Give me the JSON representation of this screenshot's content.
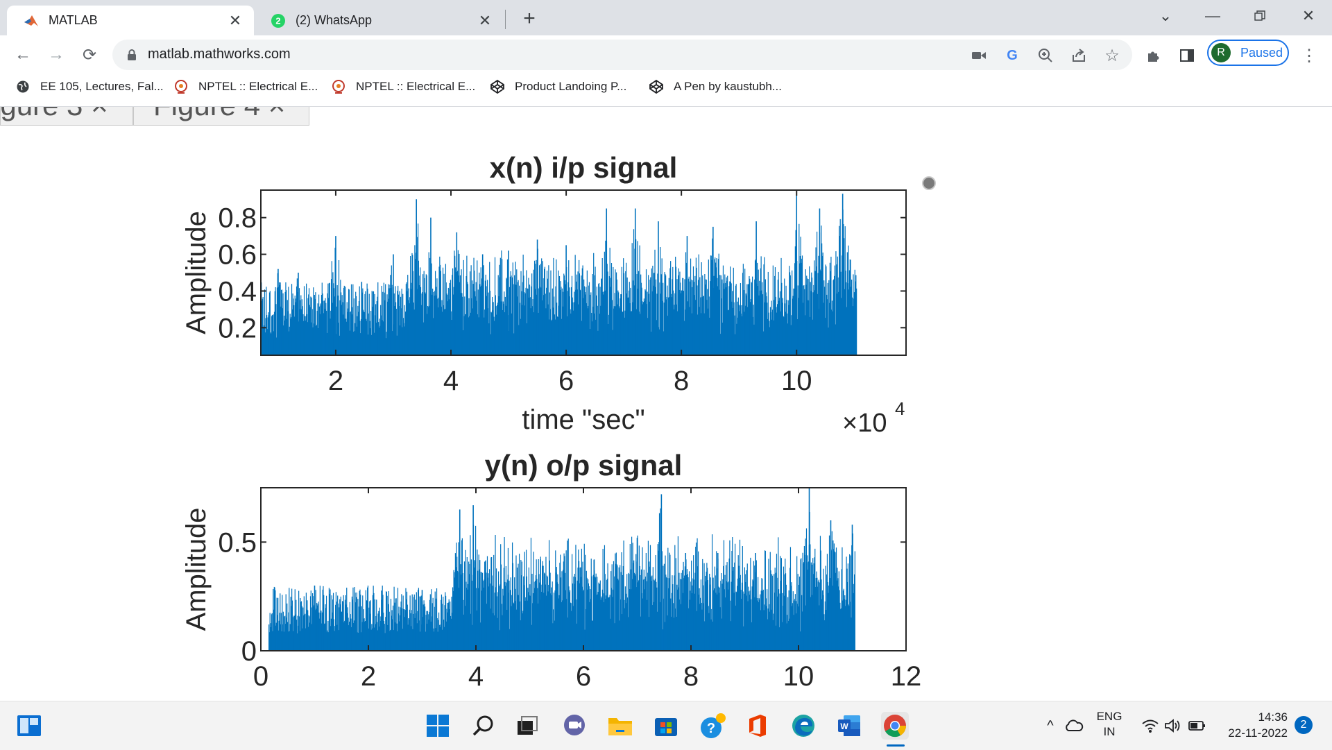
{
  "browser": {
    "tabs": [
      {
        "title": "MATLAB",
        "active": true,
        "icon": "matlab-icon"
      },
      {
        "title": "(2) WhatsApp",
        "active": false,
        "icon": "whatsapp-icon",
        "badge": "2"
      }
    ],
    "url": "matlab.mathworks.com",
    "profile": {
      "initial": "R",
      "status": "Paused"
    },
    "bookmarks": [
      {
        "label": "EE 105, Lectures, Fal...",
        "icon": "globe-icon"
      },
      {
        "label": "NPTEL :: Electrical E...",
        "icon": "nptel-icon"
      },
      {
        "label": "NPTEL :: Electrical E...",
        "icon": "nptel-icon"
      },
      {
        "label": "Product Landoing P...",
        "icon": "codepen-icon"
      },
      {
        "label": "A Pen by kaustubh...",
        "icon": "codepen-icon"
      }
    ]
  },
  "colors": {
    "series": "#0072bd",
    "accent": "#1a73e8"
  },
  "chart_data": [
    {
      "type": "bar",
      "title": "x(n) i/p signal",
      "xlabel": "time \"sec\"",
      "ylabel": "Amplitude",
      "x_exponent_label": "×10",
      "x_exponent_power": "4",
      "xlim": [
        0.7,
        11.9
      ],
      "ylim": [
        0.05,
        0.95
      ],
      "xticks": [
        "2",
        "4",
        "6",
        "8",
        "10"
      ],
      "yticks": [
        "0.2",
        "0.4",
        "0.6",
        "0.8"
      ],
      "data_range_x": [
        0.7,
        11.05
      ],
      "peaks": [
        {
          "x": 1.0,
          "y": 0.52
        },
        {
          "x": 1.35,
          "y": 0.5
        },
        {
          "x": 2.0,
          "y": 0.7
        },
        {
          "x": 2.45,
          "y": 0.45
        },
        {
          "x": 3.0,
          "y": 0.6
        },
        {
          "x": 3.4,
          "y": 0.9
        },
        {
          "x": 3.65,
          "y": 0.8
        },
        {
          "x": 4.1,
          "y": 0.72
        },
        {
          "x": 4.55,
          "y": 0.6
        },
        {
          "x": 5.0,
          "y": 0.62
        },
        {
          "x": 5.5,
          "y": 0.68
        },
        {
          "x": 6.0,
          "y": 0.65
        },
        {
          "x": 6.7,
          "y": 0.85
        },
        {
          "x": 7.2,
          "y": 0.85
        },
        {
          "x": 7.6,
          "y": 0.78
        },
        {
          "x": 8.1,
          "y": 0.7
        },
        {
          "x": 8.55,
          "y": 0.75
        },
        {
          "x": 9.3,
          "y": 0.78
        },
        {
          "x": 10.0,
          "y": 0.92
        },
        {
          "x": 10.4,
          "y": 0.85
        },
        {
          "x": 10.8,
          "y": 0.93
        }
      ]
    },
    {
      "type": "bar",
      "title": "y(n) o/p signal",
      "xlabel": "",
      "ylabel": "Amplitude",
      "xlim": [
        0,
        12
      ],
      "ylim": [
        0,
        0.75
      ],
      "xticks": [
        "0",
        "2",
        "4",
        "6",
        "8",
        "10",
        "12"
      ],
      "yticks": [
        "0",
        "0.5"
      ],
      "data_range_x": [
        0.15,
        11.05
      ],
      "peaks": [
        {
          "x": 1.0,
          "y": 0.3
        },
        {
          "x": 1.5,
          "y": 0.18
        },
        {
          "x": 2.6,
          "y": 0.2
        },
        {
          "x": 3.0,
          "y": 0.28
        },
        {
          "x": 3.7,
          "y": 0.65
        },
        {
          "x": 3.95,
          "y": 0.67
        },
        {
          "x": 4.6,
          "y": 0.35
        },
        {
          "x": 5.2,
          "y": 0.42
        },
        {
          "x": 6.2,
          "y": 0.42
        },
        {
          "x": 6.6,
          "y": 0.4
        },
        {
          "x": 7.0,
          "y": 0.52
        },
        {
          "x": 7.45,
          "y": 0.72
        },
        {
          "x": 7.9,
          "y": 0.45
        },
        {
          "x": 8.5,
          "y": 0.45
        },
        {
          "x": 9.2,
          "y": 0.45
        },
        {
          "x": 10.2,
          "y": 0.75
        },
        {
          "x": 10.6,
          "y": 0.6
        },
        {
          "x": 11.0,
          "y": 0.58
        }
      ]
    }
  ],
  "system": {
    "lang_top": "ENG",
    "lang_bottom": "IN",
    "time": "14:36",
    "date": "22-11-2022",
    "notifications": "2"
  }
}
